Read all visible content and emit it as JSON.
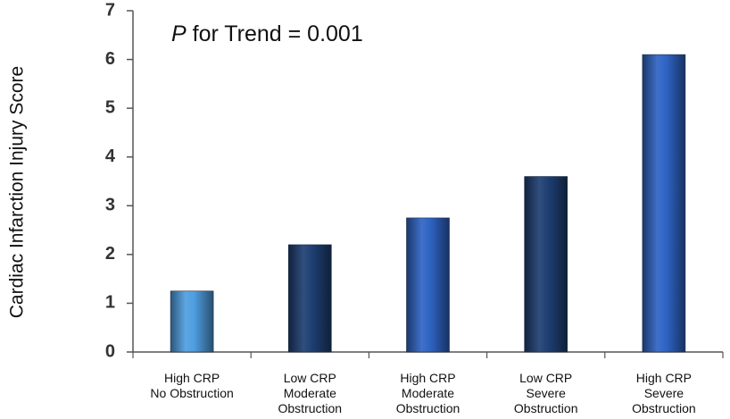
{
  "chart_data": {
    "type": "bar",
    "categories": [
      [
        "High CRP",
        "No Obstruction"
      ],
      [
        "Low CRP",
        "Moderate",
        "Obstruction"
      ],
      [
        "High CRP",
        "Moderate",
        "Obstruction"
      ],
      [
        "Low CRP",
        "Severe",
        "Obstruction"
      ],
      [
        "High CRP",
        "Severe",
        "Obstruction"
      ]
    ],
    "values": [
      1.25,
      2.2,
      2.75,
      3.6,
      6.1
    ],
    "bar_colors": [
      "#4f9ee0",
      "#1e3f72",
      "#2f64c4",
      "#1e3f72",
      "#2f64c4"
    ],
    "xlabel": "",
    "ylabel": "Cardiac Infarction Injury Score",
    "ylim": [
      0,
      7
    ],
    "yticks": [
      0,
      1,
      2,
      3,
      4,
      5,
      6,
      7
    ],
    "grid": false,
    "legend": "none",
    "annotation": {
      "italic_part": "P",
      "rest": " for Trend = 0.001"
    }
  }
}
